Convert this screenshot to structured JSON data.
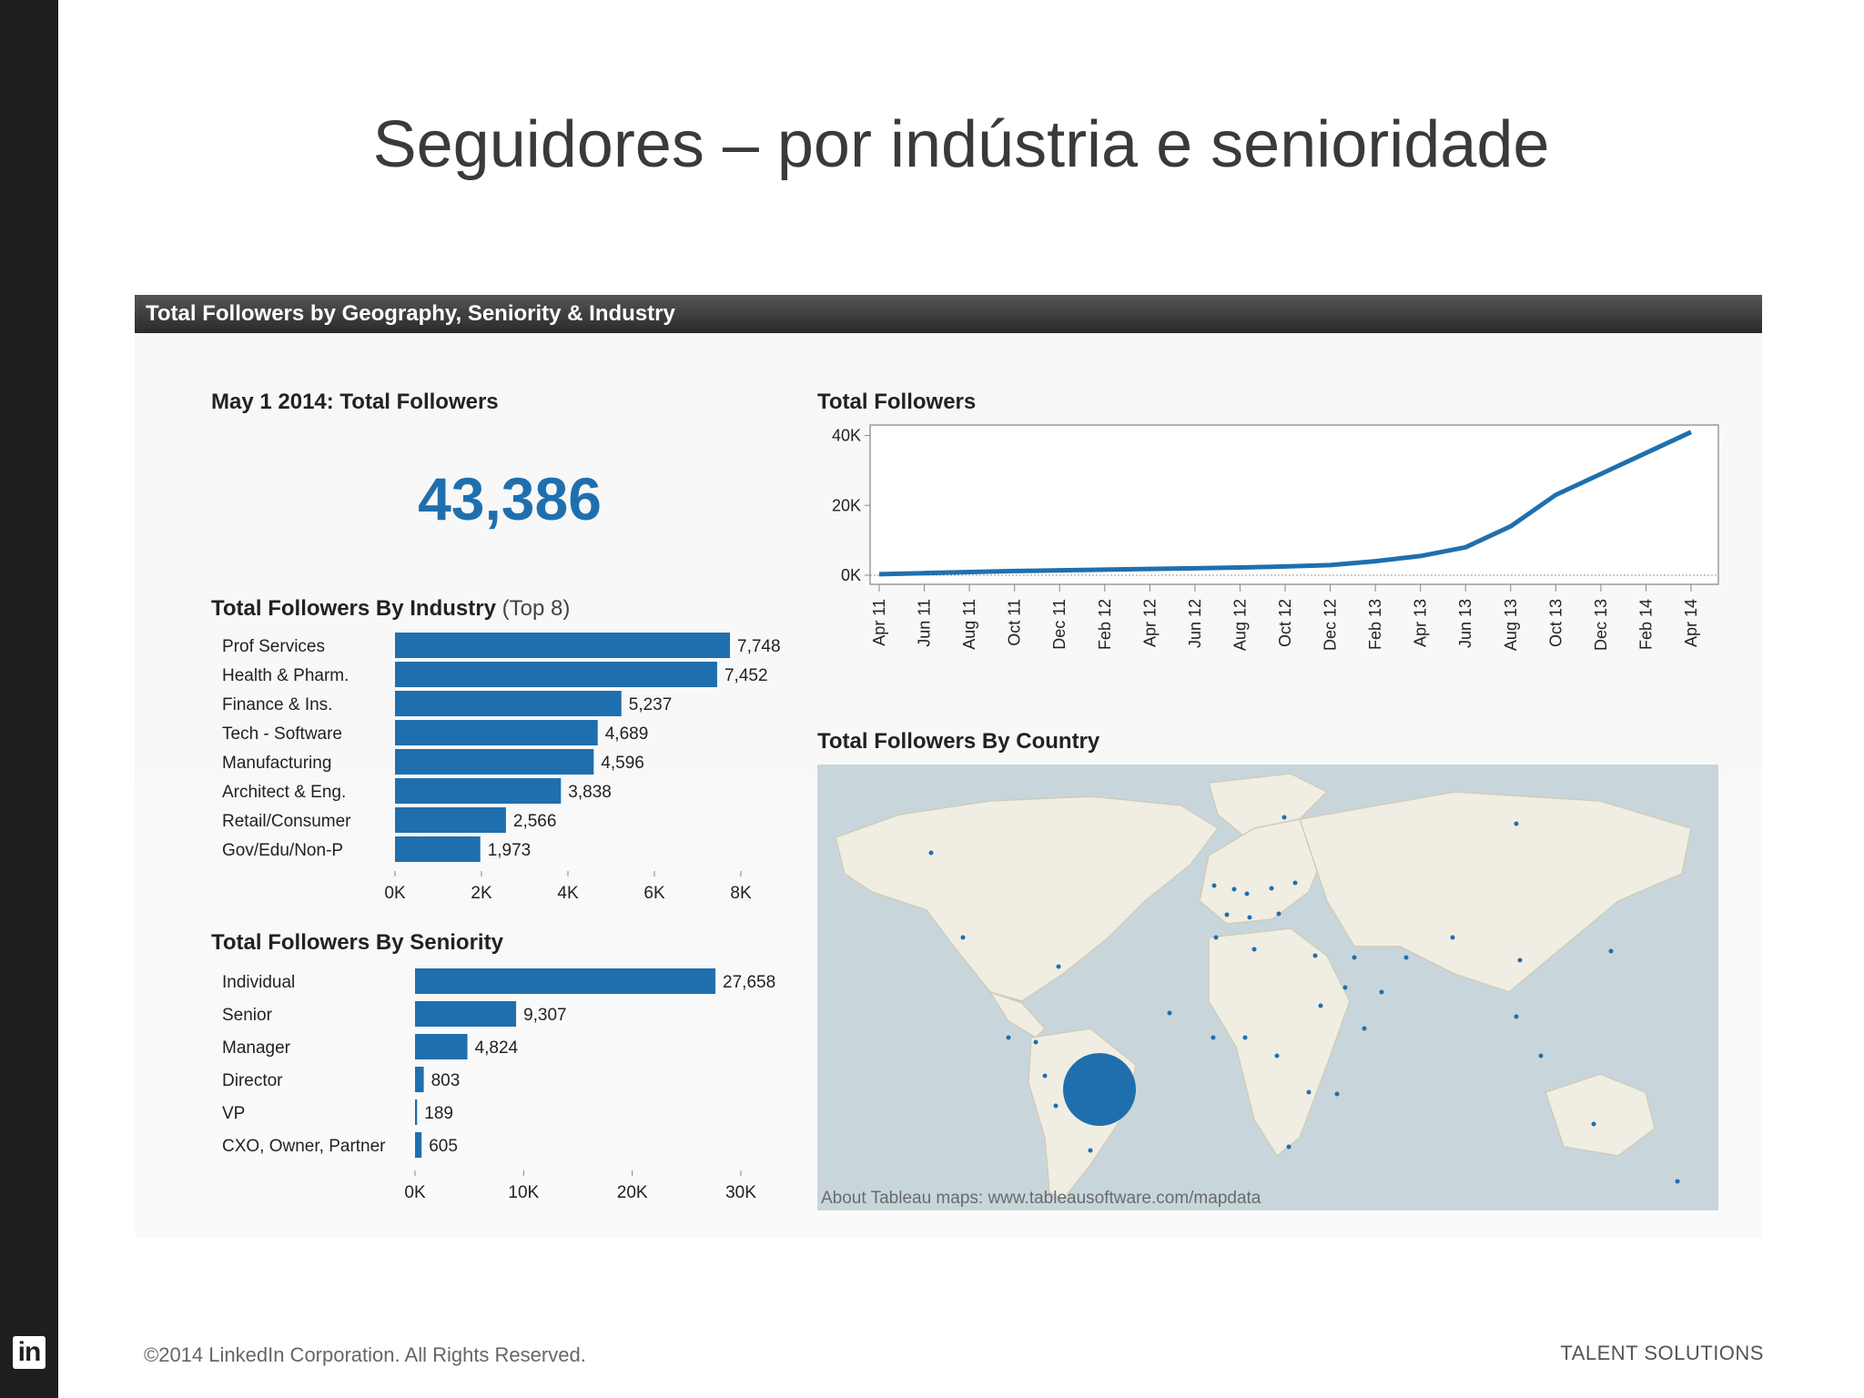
{
  "slide": {
    "title": "Seguidores – por indústria e senioridade",
    "footer_left": "©2014 LinkedIn Corporation. All Rights Reserved.",
    "footer_right": "TALENT SOLUTIONS",
    "logo_text": "in"
  },
  "dashboard": {
    "header": "Total Followers by Geography, Seniority & Industry",
    "kpi_title": "May 1 2014: Total Followers",
    "kpi_value": "43,386",
    "industry_title": "Total Followers By Industry",
    "industry_title_suffix": "(Top 8)",
    "seniority_title": "Total Followers By Seniority",
    "line_title": "Total Followers",
    "map_title": "Total Followers By Country",
    "map_note": "About Tableau maps: www.tableausoftware.com/mapdata"
  },
  "colors": {
    "bar": "#1f6fae",
    "header_bg": "#333333",
    "map_water": "#c8d6dc",
    "map_land": "#f0eee2"
  },
  "chart_data": [
    {
      "type": "bar",
      "orientation": "horizontal",
      "title": "Total Followers By Industry (Top 8)",
      "categories": [
        "Prof Services",
        "Health & Pharm.",
        "Finance & Ins.",
        "Tech - Software",
        "Manufacturing",
        "Architect & Eng.",
        "Retail/Consumer",
        "Gov/Edu/Non-P"
      ],
      "values": [
        7748,
        7452,
        5237,
        4689,
        4596,
        3838,
        2566,
        1973
      ],
      "value_labels": [
        "7,748",
        "7,452",
        "5,237",
        "4,689",
        "4,596",
        "3,838",
        "2,566",
        "1,973"
      ],
      "xlim": [
        0,
        8000
      ],
      "xticks": [
        "0K",
        "2K",
        "4K",
        "6K",
        "8K"
      ]
    },
    {
      "type": "bar",
      "orientation": "horizontal",
      "title": "Total Followers By Seniority",
      "categories": [
        "Individual",
        "Senior",
        "Manager",
        "Director",
        "VP",
        "CXO, Owner, Partner"
      ],
      "values": [
        27658,
        9307,
        4824,
        803,
        189,
        605
      ],
      "value_labels": [
        "27,658",
        "9,307",
        "4,824",
        "803",
        "189",
        "605"
      ],
      "xlim": [
        0,
        30000
      ],
      "xticks": [
        "0K",
        "10K",
        "20K",
        "30K"
      ]
    },
    {
      "type": "line",
      "title": "Total Followers",
      "x": [
        "Apr 11",
        "Jun 11",
        "Aug 11",
        "Oct 11",
        "Dec 11",
        "Feb 12",
        "Apr 12",
        "Jun 12",
        "Aug 12",
        "Oct 12",
        "Dec 12",
        "Feb 13",
        "Apr 13",
        "Jun 13",
        "Aug 13",
        "Oct 13",
        "Dec 13",
        "Feb 14",
        "Apr 14"
      ],
      "series": [
        {
          "values": [
            300,
            600,
            900,
            1200,
            1400,
            1600,
            1800,
            2000,
            2200,
            2500,
            2900,
            4000,
            5500,
            8000,
            14000,
            23000,
            29000,
            35000,
            41000
          ]
        }
      ],
      "ylim": [
        0,
        43000
      ],
      "yticks": [
        "0K",
        "20K",
        "40K"
      ],
      "grid": false
    },
    {
      "type": "map",
      "title": "Total Followers By Country",
      "largest_marker": "Brazil"
    }
  ]
}
